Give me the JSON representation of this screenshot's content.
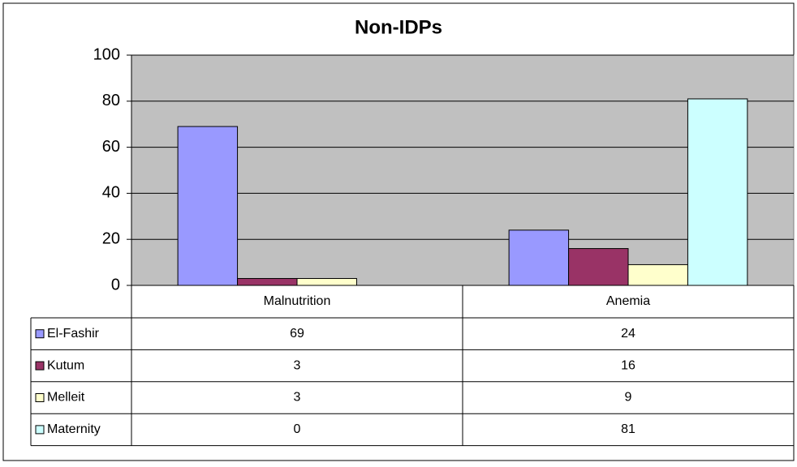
{
  "chart_data": {
    "type": "bar",
    "title": "Non-IDPs",
    "categories": [
      "Malnutrition",
      "Anemia"
    ],
    "series": [
      {
        "name": "El-Fashir",
        "color": "#9999ff",
        "values": [
          69,
          24
        ]
      },
      {
        "name": "Kutum",
        "color": "#993366",
        "values": [
          3,
          16
        ]
      },
      {
        "name": "Melleit",
        "color": "#ffffcc",
        "values": [
          3,
          9
        ]
      },
      {
        "name": "Maternity",
        "color": "#ccffff",
        "values": [
          0,
          81
        ]
      }
    ],
    "ylim": [
      0,
      100
    ],
    "yticks": [
      0,
      20,
      40,
      60,
      80,
      100
    ],
    "grid": true,
    "data_table": true
  }
}
